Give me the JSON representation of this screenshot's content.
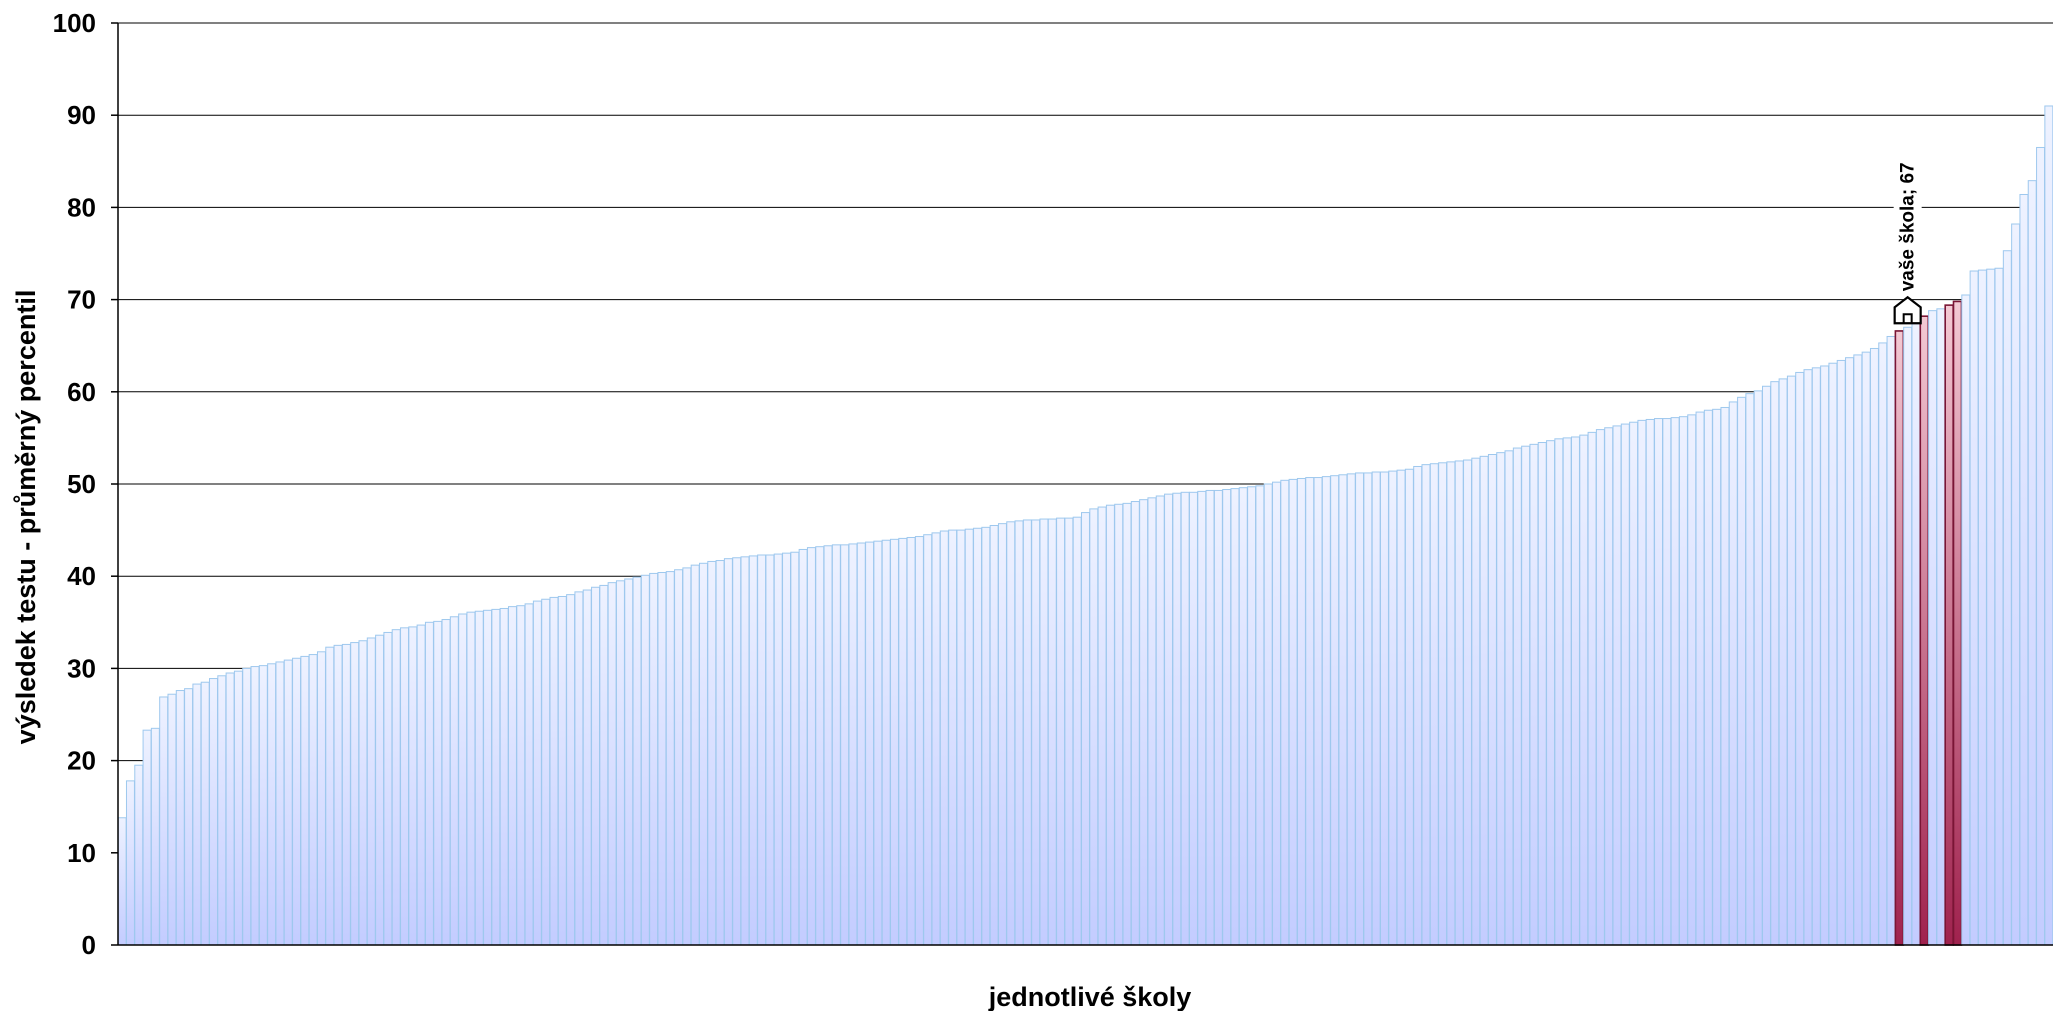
{
  "chart_data": {
    "type": "bar",
    "xlabel": "jednotlivé školy",
    "ylabel": "výsledek testu - průměrný percentil",
    "ylim": [
      0,
      100
    ],
    "yticks": [
      0,
      10,
      20,
      30,
      40,
      50,
      60,
      70,
      80,
      90,
      100
    ],
    "grid": "horizontal",
    "legend": "none",
    "colors": {
      "regular": "#c3ccff",
      "regular_top": "#eef2ff",
      "regular_border": "#9ec8ee",
      "highlight": "#a0224e",
      "highlight_top": "#f3c9d4",
      "highlight_border": "#7a1535"
    },
    "annotation": {
      "text": "vaše škola; 67",
      "value": 67,
      "icon": "house-icon"
    },
    "series": [
      {
        "values": [
          13.8,
          17.8,
          19.5,
          23.3,
          23.5,
          26.9,
          27.2,
          27.6,
          27.8,
          28.3,
          28.5,
          28.9,
          29.2,
          29.5,
          29.7,
          30.0,
          30.2,
          30.3,
          30.5,
          30.7,
          30.9,
          31.1,
          31.3,
          31.5,
          31.8,
          32.3,
          32.5,
          32.6,
          32.8,
          33.0,
          33.3,
          33.6,
          33.9,
          34.2,
          34.4,
          34.5,
          34.7,
          35.0,
          35.1,
          35.3,
          35.6,
          35.9,
          36.1,
          36.2,
          36.3,
          36.4,
          36.5,
          36.7,
          36.8,
          37.0,
          37.3,
          37.5,
          37.7,
          37.8,
          38.0,
          38.3,
          38.5,
          38.8,
          39.0,
          39.3,
          39.5,
          39.7,
          39.9,
          40.1,
          40.3,
          40.4,
          40.5,
          40.7,
          40.9,
          41.2,
          41.4,
          41.6,
          41.7,
          41.9,
          42.0,
          42.1,
          42.2,
          42.3,
          42.3,
          42.4,
          42.5,
          42.6,
          42.9,
          43.1,
          43.2,
          43.3,
          43.4,
          43.4,
          43.5,
          43.6,
          43.7,
          43.8,
          43.9,
          44.0,
          44.1,
          44.2,
          44.3,
          44.5,
          44.7,
          44.9,
          45.0,
          45.0,
          45.1,
          45.2,
          45.3,
          45.5,
          45.7,
          45.9,
          46.0,
          46.1,
          46.1,
          46.2,
          46.2,
          46.3,
          46.3,
          46.4,
          46.9,
          47.3,
          47.5,
          47.7,
          47.8,
          47.9,
          48.1,
          48.3,
          48.5,
          48.7,
          48.9,
          49.0,
          49.1,
          49.1,
          49.2,
          49.3,
          49.3,
          49.4,
          49.5,
          49.6,
          49.7,
          49.8,
          50.0,
          50.2,
          50.4,
          50.5,
          50.6,
          50.7,
          50.7,
          50.8,
          50.9,
          51.0,
          51.1,
          51.2,
          51.2,
          51.3,
          51.3,
          51.4,
          51.5,
          51.6,
          51.9,
          52.1,
          52.2,
          52.3,
          52.4,
          52.5,
          52.6,
          52.8,
          53.0,
          53.2,
          53.4,
          53.6,
          53.9,
          54.1,
          54.3,
          54.5,
          54.7,
          54.9,
          55.0,
          55.1,
          55.3,
          55.6,
          55.9,
          56.1,
          56.3,
          56.5,
          56.7,
          56.9,
          57.0,
          57.1,
          57.1,
          57.2,
          57.3,
          57.5,
          57.8,
          58.0,
          58.1,
          58.3,
          58.9,
          59.4,
          59.8,
          60.1,
          60.6,
          61.1,
          61.4,
          61.7,
          62.1,
          62.4,
          62.6,
          62.8,
          63.1,
          63.4,
          63.7,
          64.0,
          64.3,
          64.7,
          65.3,
          66.0,
          66.6,
          67.0,
          67.6,
          68.2,
          68.8,
          69.0,
          69.4,
          69.8,
          70.5,
          73.1,
          73.2,
          73.3,
          73.4,
          75.3,
          78.2,
          81.4,
          82.9,
          86.5,
          91.0
        ],
        "highlight": [
          214,
          217,
          220,
          221
        ]
      }
    ]
  }
}
